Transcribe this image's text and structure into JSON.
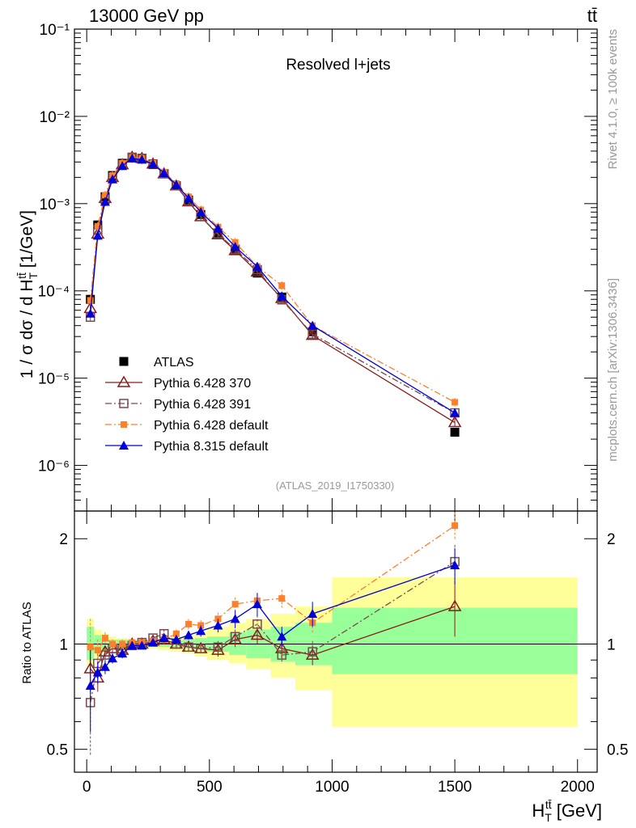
{
  "header": {
    "energy_label": "13000 GeV pp",
    "process_label": "tt̄",
    "plot_title": "Resolved l+jets",
    "analysis_id": "(ATLAS_2019_I1750330)",
    "rivet_label": "Rivet 4.1.0, ≥ 100k events",
    "site_label": "mcplots.cern.ch [arXiv:1306.3436]"
  },
  "chart_data": [
    {
      "type": "line",
      "panel": "main",
      "title": "Resolved l+jets",
      "ylabel": "1 / σ dσ / d H_T^tt̄ [1/GeV]",
      "xlim": [
        -50,
        2080
      ],
      "ylim": [
        3e-07,
        0.1
      ],
      "yscale": "log",
      "y_ticks": [
        {
          "value": 0.1,
          "label": "10⁻¹"
        },
        {
          "value": 0.01,
          "label": "10⁻²"
        },
        {
          "value": 0.001,
          "label": "10⁻³"
        },
        {
          "value": 0.0001,
          "label": "10⁻⁴"
        },
        {
          "value": 1e-05,
          "label": "10⁻⁵"
        },
        {
          "value": 1e-06,
          "label": "10⁻⁶"
        }
      ],
      "legend_position": "bottom-left",
      "x": [
        15,
        45,
        75,
        105,
        145,
        185,
        225,
        270,
        315,
        365,
        415,
        465,
        535,
        605,
        695,
        795,
        920,
        1500
      ],
      "series": [
        {
          "name": "ATLAS",
          "color": "#000000",
          "marker": "square",
          "dash": "none",
          "values": [
            8e-05,
            0.00057,
            0.0012,
            0.0021,
            0.0029,
            0.0034,
            0.0033,
            0.0028,
            0.0022,
            0.0016,
            0.0011,
            0.00075,
            0.00046,
            0.00029,
            0.00016,
            8.5e-05,
            3.4e-05,
            2.4e-06
          ]
        },
        {
          "name": "Pythia 6.428 370",
          "color": "#8b1a1a",
          "marker": "triangle-open",
          "dash": "none",
          "values": [
            6.3e-05,
            0.00045,
            0.00115,
            0.002,
            0.0028,
            0.0034,
            0.0033,
            0.00285,
            0.0022,
            0.0016,
            0.00105,
            0.00071,
            0.00044,
            0.00029,
            0.000165,
            8.2e-05,
            3.1e-05,
            3.1e-06
          ]
        },
        {
          "name": "Pythia 6.428 391",
          "color": "#7a4a50",
          "marker": "square-open",
          "dash": "dashdot",
          "values": [
            5e-05,
            0.0005,
            0.00112,
            0.002,
            0.0028,
            0.0034,
            0.0033,
            0.00285,
            0.0022,
            0.0016,
            0.00107,
            0.00071,
            0.00045,
            0.0003,
            0.000175,
            7.9e-05,
            3.2e-05,
            4e-06
          ]
        },
        {
          "name": "Pythia 6.428 default",
          "color": "#ff7f2a",
          "marker": "square-small",
          "dash": "dashdot",
          "values": [
            7.8e-05,
            0.00055,
            0.00125,
            0.0021,
            0.0029,
            0.0034,
            0.0033,
            0.0029,
            0.0023,
            0.0017,
            0.0012,
            0.00085,
            0.00054,
            0.00036,
            0.00019,
            0.000115,
            4e-05,
            5.3e-06
          ]
        },
        {
          "name": "Pythia 8.315 default",
          "color": "#0000dd",
          "marker": "triangle",
          "dash": "none",
          "values": [
            5.5e-05,
            0.00043,
            0.00105,
            0.0019,
            0.0027,
            0.0033,
            0.0032,
            0.00285,
            0.00225,
            0.00165,
            0.00115,
            0.0008,
            0.00052,
            0.00032,
            0.00019,
            8.7e-05,
            4e-05,
            4e-06
          ]
        }
      ]
    },
    {
      "type": "line",
      "panel": "ratio",
      "ylabel": "Ratio to ATLAS",
      "xlabel": "H_T^tt̄ [GeV]",
      "xlim": [
        -50,
        2080
      ],
      "ylim": [
        0.43,
        2.4
      ],
      "yscale": "log",
      "x_ticks": [
        0,
        500,
        1000,
        1500,
        2000
      ],
      "y_ticks": [
        0.5,
        1,
        2
      ],
      "bands": {
        "edges": [
          0,
          30,
          60,
          90,
          120,
          170,
          200,
          250,
          290,
          340,
          390,
          440,
          490,
          580,
          650,
          750,
          850,
          1000,
          2000
        ],
        "green_upper": [
          1.12,
          1.06,
          1.04,
          1.03,
          1.03,
          1.02,
          1.02,
          1.02,
          1.02,
          1.02,
          1.03,
          1.04,
          1.05,
          1.08,
          1.1,
          1.12,
          1.15,
          1.27
        ],
        "green_lower": [
          0.9,
          0.94,
          0.96,
          0.97,
          0.97,
          0.98,
          0.98,
          0.98,
          0.98,
          0.98,
          0.97,
          0.96,
          0.95,
          0.93,
          0.91,
          0.89,
          0.87,
          0.82
        ],
        "yellow_upper": [
          1.18,
          1.1,
          1.07,
          1.05,
          1.04,
          1.03,
          1.03,
          1.03,
          1.04,
          1.05,
          1.06,
          1.08,
          1.12,
          1.15,
          1.18,
          1.22,
          1.28,
          1.55
        ],
        "yellow_lower": [
          0.86,
          0.91,
          0.94,
          0.96,
          0.97,
          0.97,
          0.97,
          0.97,
          0.96,
          0.95,
          0.94,
          0.92,
          0.9,
          0.88,
          0.85,
          0.8,
          0.74,
          0.58
        ]
      },
      "x": [
        15,
        45,
        75,
        105,
        145,
        185,
        225,
        270,
        315,
        365,
        415,
        465,
        535,
        605,
        695,
        795,
        920,
        1500
      ],
      "series": [
        {
          "name": "Pythia 6.428 370",
          "values": [
            0.85,
            0.8,
            0.95,
            0.97,
            0.96,
            1.0,
            1.0,
            1.02,
            1.03,
            1.0,
            0.98,
            0.97,
            0.96,
            1.03,
            1.06,
            0.97,
            0.93,
            1.28
          ],
          "errors": [
            0.12,
            0.07,
            0.04,
            0.03,
            0.03,
            0.02,
            0.02,
            0.02,
            0.03,
            0.03,
            0.03,
            0.03,
            0.04,
            0.05,
            0.06,
            0.06,
            0.06,
            0.23
          ]
        },
        {
          "name": "Pythia 6.428 391",
          "values": [
            0.68,
            0.88,
            0.93,
            0.97,
            0.97,
            0.99,
            1.01,
            1.04,
            1.07,
            1.0,
            0.98,
            0.97,
            0.98,
            1.05,
            1.14,
            0.93,
            0.95,
            1.72
          ],
          "errors": [
            0.2,
            0.06,
            0.04,
            0.03,
            0.03,
            0.02,
            0.02,
            0.02,
            0.03,
            0.03,
            0.03,
            0.03,
            0.04,
            0.05,
            0.07,
            0.05,
            0.07,
            0.2
          ]
        },
        {
          "name": "Pythia 6.428 default",
          "values": [
            0.98,
            0.96,
            1.04,
            1.0,
            1.0,
            1.01,
            1.01,
            1.02,
            1.03,
            1.07,
            1.14,
            1.13,
            1.18,
            1.3,
            1.33,
            1.35,
            1.15,
            2.18
          ],
          "errors": [
            0.2,
            0.07,
            0.04,
            0.03,
            0.03,
            0.02,
            0.02,
            0.02,
            0.03,
            0.03,
            0.04,
            0.04,
            0.05,
            0.06,
            0.06,
            0.08,
            0.07,
            0.2
          ]
        },
        {
          "name": "Pythia 8.315 default",
          "values": [
            0.76,
            0.83,
            0.86,
            0.91,
            0.94,
            0.99,
            0.99,
            1.01,
            1.04,
            1.03,
            1.06,
            1.09,
            1.13,
            1.18,
            1.3,
            1.05,
            1.22,
            1.68
          ],
          "errors": [
            0.2,
            0.06,
            0.04,
            0.03,
            0.03,
            0.02,
            0.02,
            0.02,
            0.03,
            0.03,
            0.03,
            0.04,
            0.05,
            0.07,
            0.1,
            0.07,
            0.1,
            0.2
          ]
        }
      ]
    }
  ]
}
